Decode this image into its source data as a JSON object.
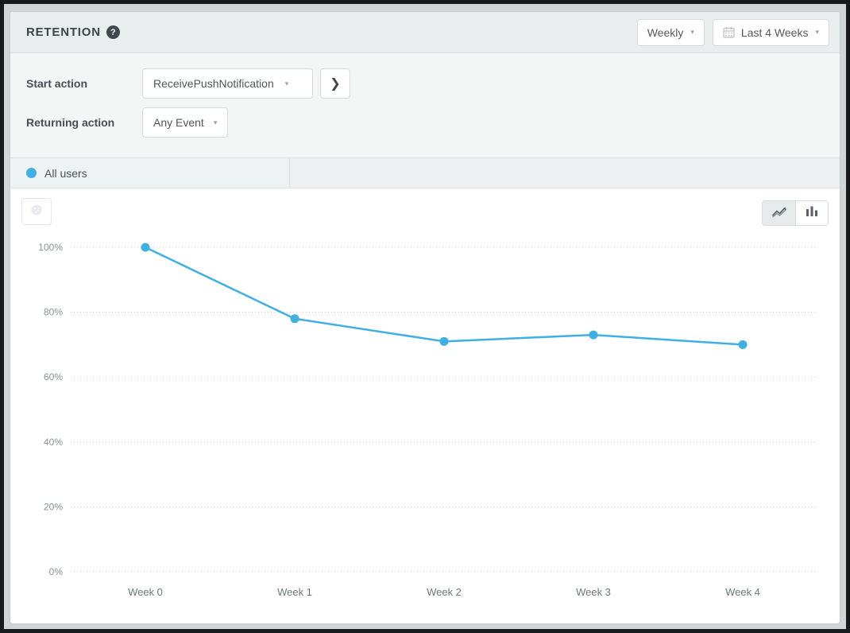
{
  "colors": {
    "accent_blue": "#3FAFE4",
    "header_bg": "#e9edee",
    "filter_bg": "#f4f6f6",
    "axis_label_gray": "#8b9296"
  },
  "icons": {
    "help_glyph": "?",
    "caret_down": "▾",
    "chevron_right": "❯"
  },
  "header": {
    "title": "RETENTION",
    "granularity_dropdown": {
      "value": "Weekly"
    },
    "range_dropdown": {
      "value": "Last 4 Weeks"
    }
  },
  "filters": {
    "start_action": {
      "label": "Start action",
      "value": "ReceivePushNotification"
    },
    "returning_action": {
      "label": "Returning action",
      "value": "Any Event"
    }
  },
  "tabs": [
    {
      "label": "All users"
    }
  ],
  "chart_toolbar": {
    "chart_type_options": [
      "line",
      "bar"
    ],
    "active_chart_type": "line"
  },
  "chart_data": {
    "type": "line",
    "x": [
      "Week 0",
      "Week 1",
      "Week 2",
      "Week 3",
      "Week 4"
    ],
    "series": [
      {
        "name": "All users",
        "values": [
          100,
          78,
          71,
          73,
          70
        ]
      }
    ],
    "title": "Retention - All users",
    "xlabel": "",
    "ylabel": "",
    "ylim": [
      0,
      100
    ],
    "yticks": [
      0,
      20,
      40,
      60,
      80,
      100
    ],
    "ytick_format": "percent",
    "grid": "horizontal-dotted",
    "legend_position": "none",
    "line_color": "#3FAFE4"
  }
}
